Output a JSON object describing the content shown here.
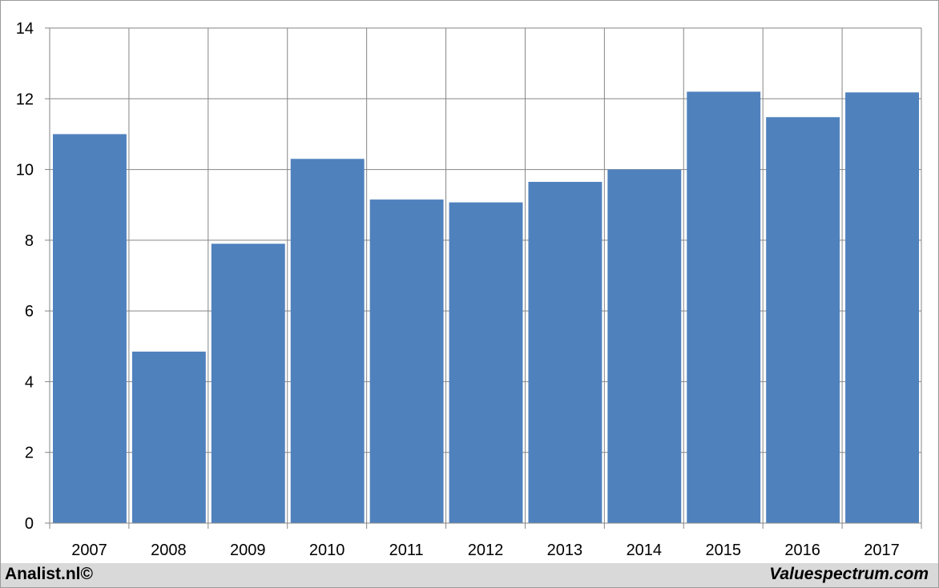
{
  "chart_data": {
    "type": "bar",
    "categories": [
      "2007",
      "2008",
      "2009",
      "2010",
      "2011",
      "2012",
      "2013",
      "2014",
      "2015",
      "2016",
      "2017"
    ],
    "values": [
      11.0,
      4.85,
      7.9,
      10.3,
      9.15,
      9.07,
      9.65,
      10.0,
      12.2,
      11.48,
      12.18
    ],
    "ylim": [
      0,
      14
    ],
    "yticks": [
      "0",
      "2",
      "4",
      "6",
      "8",
      "10",
      "12",
      "14"
    ],
    "grid": true,
    "bar_color": "#4f81bd",
    "grid_color": "#868686"
  },
  "footer": {
    "left_text": "Analist.nl©",
    "right_text": "Valuespectrum.com",
    "background": "#d9d9d9"
  }
}
